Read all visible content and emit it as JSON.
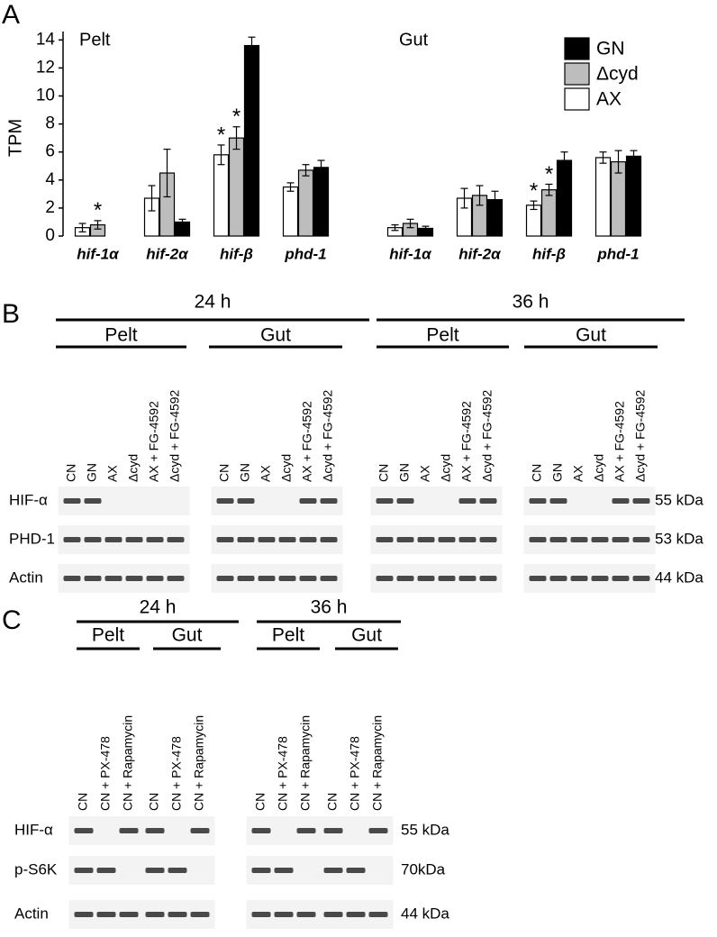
{
  "panel_labels": [
    "A",
    "B",
    "C"
  ],
  "chart_data": [
    {
      "type": "bar",
      "title": "Pelt",
      "ylabel": "TPM",
      "categories": [
        "hif-1α",
        "hif-2α",
        "hif-β",
        "phd-1"
      ],
      "ylim": [
        0,
        14.6
      ],
      "yticks": [
        0,
        2,
        4,
        6,
        8,
        10,
        12,
        14
      ],
      "show_y_axis": true,
      "legend": false,
      "series": [
        {
          "name": "AX",
          "color": "#ffffff",
          "values": [
            0.6,
            2.7,
            5.8,
            3.5
          ],
          "errors": [
            0.3,
            0.9,
            0.7,
            0.3
          ]
        },
        {
          "name": "Δcyd",
          "color": "#bdbdbd",
          "values": [
            0.8,
            4.5,
            7.0,
            4.7
          ],
          "errors": [
            0.3,
            1.7,
            0.8,
            0.4
          ]
        },
        {
          "name": "GN",
          "color": "#000000",
          "values": [
            0,
            1.0,
            13.6,
            4.9
          ],
          "errors": [
            0,
            0.2,
            0.6,
            0.5
          ]
        }
      ],
      "annotations": [
        {
          "text": "*",
          "category": "hif-1α",
          "series": "Δcyd"
        },
        {
          "text": "*",
          "category": "hif-β",
          "series": "AX"
        },
        {
          "text": "*",
          "category": "hif-β",
          "series": "Δcyd"
        }
      ]
    },
    {
      "type": "bar",
      "title": "Gut",
      "categories": [
        "hif-1α",
        "hif-2α",
        "hif-β",
        "phd-1"
      ],
      "ylim": [
        0,
        14.6
      ],
      "show_y_axis": false,
      "legend": "top-right",
      "series": [
        {
          "name": "AX",
          "color": "#ffffff",
          "values": [
            0.6,
            2.7,
            2.2,
            5.6
          ],
          "errors": [
            0.2,
            0.7,
            0.3,
            0.4
          ]
        },
        {
          "name": "Δcyd",
          "color": "#bdbdbd",
          "values": [
            0.9,
            2.9,
            3.3,
            5.3
          ],
          "errors": [
            0.3,
            0.7,
            0.4,
            0.8
          ]
        },
        {
          "name": "GN",
          "color": "#000000",
          "values": [
            0.55,
            2.6,
            5.4,
            5.7
          ],
          "errors": [
            0.15,
            0.6,
            0.6,
            0.4
          ]
        }
      ],
      "annotations": [
        {
          "text": "*",
          "category": "hif-β",
          "series": "AX"
        },
        {
          "text": "*",
          "category": "hif-β",
          "series": "Δcyd"
        }
      ]
    }
  ],
  "panel_b": {
    "groups": [
      {
        "time": "24 h",
        "tissues": [
          "Pelt",
          "Gut"
        ]
      },
      {
        "time": "36 h",
        "tissues": [
          "Pelt",
          "Gut"
        ]
      }
    ],
    "lanes": [
      "CN",
      "GN",
      "AX",
      "Δcyd",
      "AX + FG-4592",
      "Δcyd + FG-4592"
    ],
    "rows": [
      {
        "name": "HIF-α",
        "size": "55 kDa"
      },
      {
        "name": "PHD-1",
        "size": "53 kDa"
      },
      {
        "name": "Actin",
        "size": "44 kDa"
      }
    ]
  },
  "panel_c": {
    "groups": [
      {
        "time": "24 h",
        "tissues": [
          "Pelt",
          "Gut"
        ]
      },
      {
        "time": "36 h",
        "tissues": [
          "Pelt",
          "Gut"
        ]
      }
    ],
    "lanes": [
      "CN",
      "CN + PX-478",
      "CN + Rapamycin"
    ],
    "rows": [
      {
        "name": "HIF-α",
        "size": "55 kDa"
      },
      {
        "name": "p-S6K",
        "size": "70kDa"
      },
      {
        "name": "Actin",
        "size": "44 kDa"
      }
    ]
  }
}
